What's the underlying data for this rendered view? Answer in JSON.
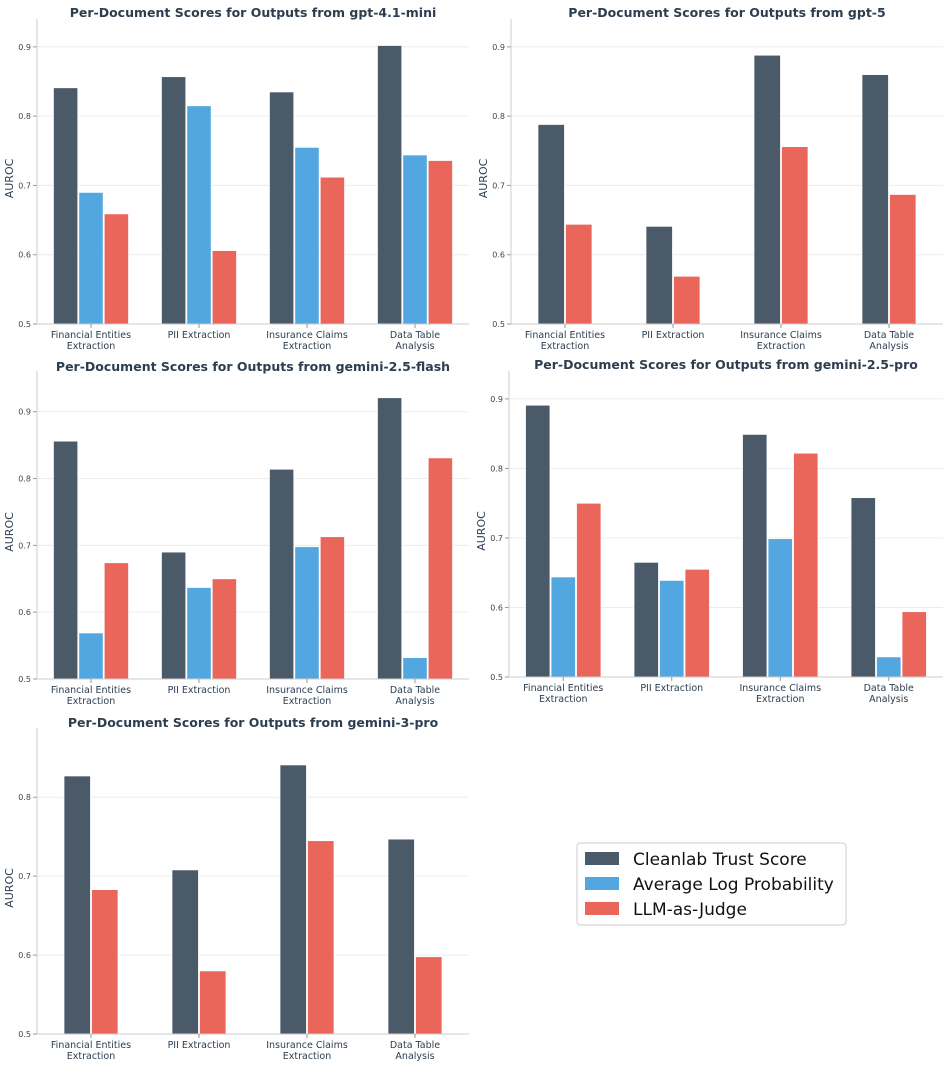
{
  "legend": {
    "placement": "bottom-right",
    "entries": [
      "Cleanlab Trust Score",
      "Average Log Probability",
      "LLM-as-Judge"
    ]
  },
  "colors": {
    "Cleanlab Trust Score": "#4b5a69",
    "Average Log Probability": "#52a7e0",
    "LLM-as-Judge": "#eb665a"
  },
  "chart_data": [
    {
      "type": "bar",
      "title": "Per-Document Scores for Outputs from gpt-4.1-mini",
      "ylabel": "AUROC",
      "xlabel": "",
      "ylim": [
        0.5,
        0.92
      ],
      "yticks": [
        "0.5",
        "0.6",
        "0.7",
        "0.8",
        "0.9"
      ],
      "grid": true,
      "categories": [
        [
          "Financial Entities",
          "Extraction"
        ],
        [
          "PII Extraction"
        ],
        [
          "Insurance Claims",
          "Extraction"
        ],
        [
          "Data Table",
          "Analysis"
        ]
      ],
      "series": [
        {
          "name": "Cleanlab Trust Score",
          "values": [
            0.841,
            0.857,
            0.835,
            0.902
          ]
        },
        {
          "name": "Average Log Probability",
          "values": [
            0.69,
            0.815,
            0.755,
            0.744
          ]
        },
        {
          "name": "LLM-as-Judge",
          "values": [
            0.659,
            0.606,
            0.712,
            0.736
          ]
        }
      ]
    },
    {
      "type": "bar",
      "title": "Per-Document Scores for Outputs from gpt-5",
      "ylabel": "AUROC",
      "xlabel": "",
      "ylim": [
        0.5,
        0.92
      ],
      "yticks": [
        "0.5",
        "0.6",
        "0.7",
        "0.8",
        "0.9"
      ],
      "grid": true,
      "categories": [
        [
          "Financial Entities",
          "Extraction"
        ],
        [
          "PII Extraction"
        ],
        [
          "Insurance Claims",
          "Extraction"
        ],
        [
          "Data Table",
          "Analysis"
        ]
      ],
      "series": [
        {
          "name": "Cleanlab Trust Score",
          "values": [
            0.788,
            0.641,
            0.888,
            0.86
          ]
        },
        {
          "name": "LLM-as-Judge",
          "values": [
            0.644,
            0.569,
            0.756,
            0.687
          ]
        }
      ]
    },
    {
      "type": "bar",
      "title": "Per-Document Scores for Outputs from gemini-2.5-flash",
      "ylabel": "AUROC",
      "xlabel": "",
      "ylim": [
        0.5,
        0.94
      ],
      "yticks": [
        "0.5",
        "0.6",
        "0.7",
        "0.8",
        "0.9"
      ],
      "grid": true,
      "categories": [
        [
          "Financial Entities",
          "Extraction"
        ],
        [
          "PII Extraction"
        ],
        [
          "Insurance Claims",
          "Extraction"
        ],
        [
          "Data Table",
          "Analysis"
        ]
      ],
      "series": [
        {
          "name": "Cleanlab Trust Score",
          "values": [
            0.856,
            0.69,
            0.814,
            0.921
          ]
        },
        {
          "name": "Average Log Probability",
          "values": [
            0.569,
            0.637,
            0.698,
            0.532
          ]
        },
        {
          "name": "LLM-as-Judge",
          "values": [
            0.674,
            0.65,
            0.713,
            0.831
          ]
        }
      ]
    },
    {
      "type": "bar",
      "title": "Per-Document Scores for Outputs from gemini-2.5-pro",
      "ylabel": "AUROC",
      "xlabel": "",
      "ylim": [
        0.5,
        0.92
      ],
      "yticks": [
        "0.5",
        "0.6",
        "0.7",
        "0.8",
        "0.9"
      ],
      "grid": true,
      "categories": [
        [
          "Financial Entities",
          "Extraction"
        ],
        [
          "PII Extraction"
        ],
        [
          "Insurance Claims",
          "Extraction"
        ],
        [
          "Data Table",
          "Analysis"
        ]
      ],
      "series": [
        {
          "name": "Cleanlab Trust Score",
          "values": [
            0.891,
            0.665,
            0.849,
            0.758
          ]
        },
        {
          "name": "Average Log Probability",
          "values": [
            0.644,
            0.639,
            0.699,
            0.529
          ]
        },
        {
          "name": "LLM-as-Judge",
          "values": [
            0.75,
            0.655,
            0.822,
            0.594
          ]
        }
      ]
    },
    {
      "type": "bar",
      "title": "Per-Document Scores for Outputs from gemini-3-pro",
      "ylabel": "AUROC",
      "xlabel": "",
      "ylim": [
        0.5,
        0.87
      ],
      "yticks": [
        "0.5",
        "0.6",
        "0.7",
        "0.8"
      ],
      "grid": true,
      "categories": [
        [
          "Financial Entities",
          "Extraction"
        ],
        [
          "PII Extraction"
        ],
        [
          "Insurance Claims",
          "Extraction"
        ],
        [
          "Data Table",
          "Analysis"
        ]
      ],
      "series": [
        {
          "name": "Cleanlab Trust Score",
          "values": [
            0.827,
            0.708,
            0.841,
            0.747
          ]
        },
        {
          "name": "LLM-as-Judge",
          "values": [
            0.683,
            0.58,
            0.745,
            0.598
          ]
        }
      ]
    }
  ]
}
